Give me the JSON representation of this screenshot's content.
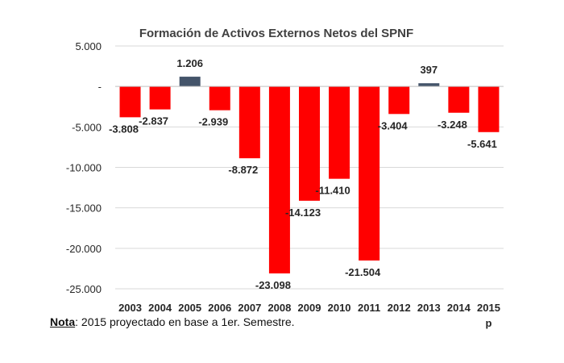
{
  "chart_data": {
    "type": "bar",
    "title": "Formación de Activos Externos Netos del SPNF",
    "categories": [
      "2003",
      "2004",
      "2005",
      "2006",
      "2007",
      "2008",
      "2009",
      "2010",
      "2011",
      "2012",
      "2013",
      "2014",
      "2015"
    ],
    "values": [
      -3808,
      -2837,
      1206,
      -2939,
      -8872,
      -23098,
      -14123,
      -11410,
      -21504,
      -3404,
      397,
      -3248,
      -5641
    ],
    "data_labels": [
      "-3.808",
      "-2.837",
      "1.206",
      "-2.939",
      "-8.872",
      "-23.098",
      "-14.123",
      "-11.410",
      "-21.504",
      "-3.404",
      "397",
      "-3.248",
      "-5.641"
    ],
    "category_sublabel": {
      "index": 12,
      "text": "p"
    },
    "ylim": [
      -25000,
      5000
    ],
    "yticks": [
      5000,
      0,
      -5000,
      -10000,
      -15000,
      -20000,
      -25000
    ],
    "ytick_labels": [
      "5.000",
      "-",
      "-5.000",
      "-10.000",
      "-15.000",
      "-20.000",
      "-25.000"
    ],
    "colors": {
      "negative": "#ff0000",
      "positive": "#44546a",
      "grid": "#d9d9d9",
      "text": "#262626"
    },
    "grid": true,
    "legend": "none"
  },
  "note": {
    "label": "Nota",
    "text": ": 2015 proyectado en base a 1er. Semestre."
  }
}
